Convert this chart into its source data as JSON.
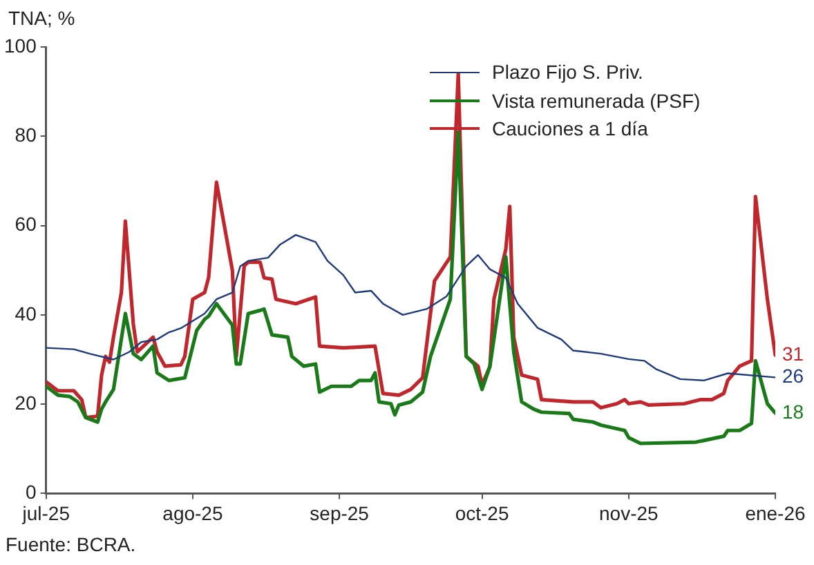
{
  "chart_data": {
    "type": "line",
    "ylabel": "TNA; %",
    "xlim": [
      "2025-07-01",
      "2026-01-01"
    ],
    "ylim": [
      0,
      100
    ],
    "yticks": [
      0,
      20,
      40,
      60,
      80,
      100
    ],
    "xticks": [
      {
        "value": "2025-07-01",
        "label": "jul-25"
      },
      {
        "value": "2025-08-07",
        "label": "ago-25"
      },
      {
        "value": "2025-09-13",
        "label": "sep-25"
      },
      {
        "value": "2025-10-19",
        "label": "oct-25"
      },
      {
        "value": "2025-11-25",
        "label": "nov-25"
      },
      {
        "value": "2026-01-01",
        "label": "ene-26"
      }
    ],
    "grid": false,
    "legend": "top right",
    "marker": "none",
    "line_style": "solid",
    "series": [
      {
        "name": "Plazo Fijo S. Priv.",
        "color": "#1f3a7a",
        "x": [
          "2025-07-01",
          "2025-07-08",
          "2025-07-12",
          "2025-07-18",
          "2025-07-22",
          "2025-07-25",
          "2025-07-29",
          "2025-08-01",
          "2025-08-04",
          "2025-08-10",
          "2025-08-13",
          "2025-08-17",
          "2025-08-19",
          "2025-08-21",
          "2025-08-26",
          "2025-08-29",
          "2025-09-02",
          "2025-09-07",
          "2025-09-10",
          "2025-09-14",
          "2025-09-17",
          "2025-09-21",
          "2025-09-24",
          "2025-09-29",
          "2025-10-05",
          "2025-10-10",
          "2025-10-15",
          "2025-10-18",
          "2025-10-21",
          "2025-10-25",
          "2025-10-28",
          "2025-11-02",
          "2025-11-08",
          "2025-11-11",
          "2025-11-18",
          "2025-11-25",
          "2025-11-29",
          "2025-12-02",
          "2025-12-08",
          "2025-12-14",
          "2025-12-20",
          "2026-01-01"
        ],
        "values": [
          32.6,
          32.3,
          31.3,
          30,
          31.7,
          33.9,
          34.5,
          36.1,
          37,
          40.3,
          43.5,
          45,
          50.9,
          52.1,
          52.8,
          55.7,
          57.9,
          56.3,
          52.1,
          48.9,
          45,
          45.4,
          42.5,
          40,
          41.3,
          44.1,
          50.9,
          53.4,
          50.2,
          48.3,
          42.5,
          37.1,
          34.5,
          32,
          31.3,
          30.1,
          29.7,
          27.8,
          25.6,
          25.3,
          26.9,
          26
        ]
      },
      {
        "name": "Vista remunerada (PSF)",
        "color": "#1a7a1a",
        "x": [
          "2025-07-01",
          "2025-07-04",
          "2025-07-07",
          "2025-07-09",
          "2025-07-11",
          "2025-07-14",
          "2025-07-15",
          "2025-07-16",
          "2025-07-18",
          "2025-07-21",
          "2025-07-23",
          "2025-07-25",
          "2025-07-28",
          "2025-07-29",
          "2025-08-01",
          "2025-08-03",
          "2025-08-05",
          "2025-08-08",
          "2025-08-10",
          "2025-08-11",
          "2025-08-13",
          "2025-08-17",
          "2025-08-18",
          "2025-08-19",
          "2025-08-21",
          "2025-08-24",
          "2025-08-25",
          "2025-08-27",
          "2025-08-31",
          "2025-09-01",
          "2025-09-04",
          "2025-09-07",
          "2025-09-08",
          "2025-09-11",
          "2025-09-16",
          "2025-09-18",
          "2025-09-21",
          "2025-09-22",
          "2025-09-23",
          "2025-09-26",
          "2025-09-27",
          "2025-09-28",
          "2025-10-01",
          "2025-10-04",
          "2025-10-06",
          "2025-10-11",
          "2025-10-13",
          "2025-10-15",
          "2025-10-17",
          "2025-10-19",
          "2025-10-21",
          "2025-10-25",
          "2025-10-27",
          "2025-10-29",
          "2025-11-01",
          "2025-11-03",
          "2025-11-10",
          "2025-11-11",
          "2025-11-16",
          "2025-11-18",
          "2025-11-24",
          "2025-11-25",
          "2025-11-28",
          "2025-12-12",
          "2025-12-19",
          "2025-12-20",
          "2025-12-23",
          "2025-12-26",
          "2025-12-27",
          "2025-12-30",
          "2026-01-01"
        ],
        "values": [
          24,
          22,
          21.7,
          20.5,
          17,
          16,
          18.9,
          20.5,
          23.3,
          40.3,
          31.3,
          30,
          33,
          27,
          25.3,
          25.6,
          25.9,
          36.5,
          39,
          39.7,
          42.5,
          37.7,
          29,
          29,
          40.3,
          41,
          41.3,
          35.5,
          35,
          30.7,
          28.5,
          29,
          22.7,
          24,
          24,
          25.3,
          25.3,
          27,
          20.5,
          20.1,
          17.6,
          19.8,
          20.5,
          22.7,
          30.7,
          43.5,
          80.9,
          30.7,
          29,
          23.3,
          28.5,
          53,
          31.7,
          20.5,
          18.9,
          18.2,
          17.9,
          16.6,
          16,
          15.3,
          14.1,
          12.5,
          11.2,
          11.5,
          12.8,
          14.1,
          14.1,
          15.7,
          29.7,
          20.1,
          18
        ]
      },
      {
        "name": "Cauciones a 1 día",
        "color": "#c0272d",
        "x": [
          "2025-07-01",
          "2025-07-04",
          "2025-07-08",
          "2025-07-10",
          "2025-07-11",
          "2025-07-14",
          "2025-07-15",
          "2025-07-16",
          "2025-07-17",
          "2025-07-18",
          "2025-07-20",
          "2025-07-21",
          "2025-07-23",
          "2025-07-24",
          "2025-07-28",
          "2025-07-29",
          "2025-07-31",
          "2025-08-04",
          "2025-08-05",
          "2025-08-07",
          "2025-08-10",
          "2025-08-11",
          "2025-08-13",
          "2025-08-17",
          "2025-08-18",
          "2025-08-20",
          "2025-08-21",
          "2025-08-24",
          "2025-08-25",
          "2025-08-27",
          "2025-08-28",
          "2025-09-02",
          "2025-09-07",
          "2025-09-08",
          "2025-09-14",
          "2025-09-22",
          "2025-09-24",
          "2025-09-28",
          "2025-10-01",
          "2025-10-04",
          "2025-10-07",
          "2025-10-11",
          "2025-10-13",
          "2025-10-15",
          "2025-10-18",
          "2025-10-19",
          "2025-10-21",
          "2025-10-22",
          "2025-10-25",
          "2025-10-26",
          "2025-10-27",
          "2025-10-29",
          "2025-11-02",
          "2025-11-03",
          "2025-11-11",
          "2025-11-16",
          "2025-11-18",
          "2025-11-22",
          "2025-11-24",
          "2025-11-25",
          "2025-11-28",
          "2025-11-30",
          "2025-12-09",
          "2025-12-13",
          "2025-12-16",
          "2025-12-19",
          "2025-12-20",
          "2025-12-23",
          "2025-12-26",
          "2025-12-27",
          "2025-12-30",
          "2026-01-01"
        ],
        "values": [
          25,
          23,
          23,
          21,
          17,
          17.3,
          26.5,
          30.7,
          29.4,
          35,
          45,
          61,
          38,
          31.7,
          35,
          31.7,
          28.5,
          28.8,
          30.7,
          43.5,
          45,
          48.3,
          69.7,
          50,
          30.7,
          51,
          51.8,
          51.8,
          48.3,
          48,
          43.5,
          42.5,
          44,
          33,
          32.6,
          33,
          22.4,
          22,
          23.3,
          25.9,
          47.6,
          53,
          94,
          30.7,
          28.5,
          24.3,
          28.5,
          43.5,
          54.7,
          64.3,
          35,
          26.5,
          25.6,
          21,
          20.5,
          20.5,
          19.2,
          20.1,
          21,
          20.1,
          20.5,
          19.8,
          20.1,
          21,
          21,
          22.4,
          25.3,
          28.5,
          29.7,
          66.5,
          43.5,
          31
        ]
      }
    ],
    "annotations": [
      {
        "text": "31",
        "x": "2026-01-01",
        "y": 31
      },
      {
        "text": "26",
        "x": "2026-01-01",
        "y": 26
      },
      {
        "text": "18",
        "x": "2026-01-01",
        "y": 18
      },
      "Fuente: BCRA."
    ]
  }
}
